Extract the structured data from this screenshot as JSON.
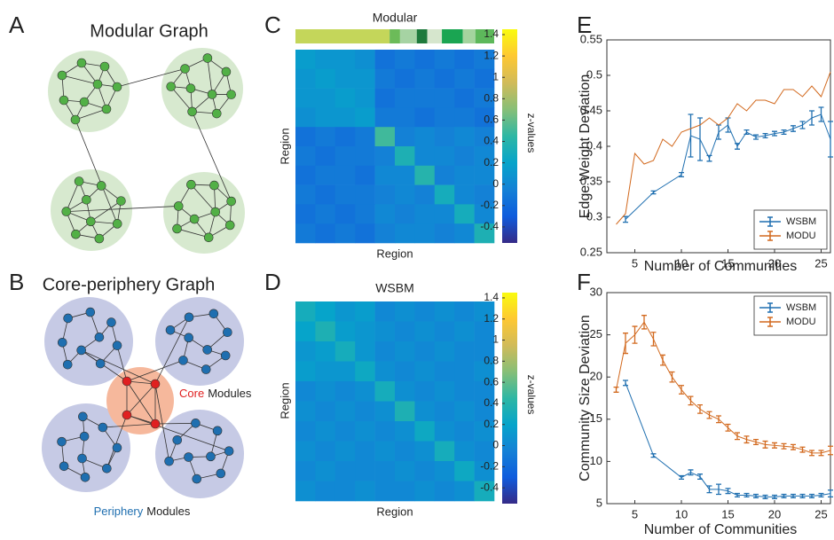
{
  "panel_labels": [
    "A",
    "B",
    "C",
    "D",
    "E",
    "F"
  ],
  "diagrams": {
    "modular": {
      "title": "Modular Graph"
    },
    "core_periphery": {
      "title": "Core-periphery Graph",
      "core_label": "Core",
      "core_suffix": "Modules",
      "periphery_label": "Periphery",
      "periphery_suffix": "Modules"
    }
  },
  "chart_data": [
    {
      "type": "heatmap",
      "title": "Modular",
      "xlabel": "Region",
      "ylabel": "Region",
      "colorbar_label": "z-values",
      "clim": [
        -0.55,
        1.45
      ],
      "colorbar_ticks": [
        -0.4,
        -0.2,
        0,
        0.2,
        0.4,
        0.6,
        0.8,
        1,
        1.2,
        1.4
      ],
      "colormap": [
        "#352a87",
        "#0f5cdd",
        "#1481d6",
        "#06a4ca",
        "#2eb7a4",
        "#87bf77",
        "#d1bb59",
        "#fec832",
        "#f9fb0e"
      ],
      "community_bar": [
        {
          "color": "#c4d65a",
          "size": 45
        },
        {
          "color": "#6cbb59",
          "size": 5
        },
        {
          "color": "#a6d3a3",
          "size": 8
        },
        {
          "color": "#1e7a3c",
          "size": 5
        },
        {
          "color": "#d6e6cd",
          "size": 7
        },
        {
          "color": "#1aa552",
          "size": 10
        },
        {
          "color": "#a4d49e",
          "size": 6
        },
        {
          "color": "#5db85b",
          "size": 9
        }
      ],
      "matrix": [
        [
          0.15,
          0.1,
          0.1,
          0.05,
          -0.15,
          -0.1,
          -0.15,
          -0.1,
          -0.15,
          -0.1
        ],
        [
          0.1,
          0.15,
          0.1,
          0.1,
          -0.1,
          -0.15,
          -0.1,
          -0.15,
          -0.1,
          -0.15
        ],
        [
          0.1,
          0.1,
          0.15,
          0.1,
          -0.15,
          -0.1,
          -0.1,
          -0.1,
          -0.15,
          -0.1
        ],
        [
          0.05,
          0.1,
          0.1,
          0.15,
          -0.1,
          -0.1,
          -0.15,
          -0.1,
          -0.1,
          -0.15
        ],
        [
          -0.15,
          -0.1,
          -0.15,
          -0.1,
          0.5,
          -0.05,
          0,
          -0.05,
          0,
          -0.05
        ],
        [
          -0.1,
          -0.15,
          -0.1,
          -0.1,
          -0.05,
          0.35,
          0,
          0,
          -0.05,
          0
        ],
        [
          -0.15,
          -0.1,
          -0.1,
          -0.15,
          0,
          0,
          0.4,
          -0.05,
          0,
          0
        ],
        [
          -0.1,
          -0.15,
          -0.1,
          -0.1,
          -0.05,
          0,
          -0.05,
          0.3,
          0,
          -0.05
        ],
        [
          -0.15,
          -0.1,
          -0.15,
          -0.1,
          0,
          -0.05,
          0,
          0,
          0.3,
          0
        ],
        [
          -0.1,
          -0.15,
          -0.1,
          -0.15,
          -0.05,
          0,
          0,
          -0.05,
          0,
          0.35
        ]
      ]
    },
    {
      "type": "heatmap",
      "title": "WSBM",
      "xlabel": "Region",
      "ylabel": "Region",
      "colorbar_label": "z-values",
      "clim": [
        -0.55,
        1.45
      ],
      "colorbar_ticks": [
        -0.4,
        -0.2,
        0,
        0.2,
        0.4,
        0.6,
        0.8,
        1,
        1.2,
        1.4
      ],
      "colormap": [
        "#352a87",
        "#0f5cdd",
        "#1481d6",
        "#06a4ca",
        "#2eb7a4",
        "#87bf77",
        "#d1bb59",
        "#fec832",
        "#f9fb0e"
      ],
      "matrix": [
        [
          0.3,
          0.2,
          0.1,
          0.15,
          0,
          0.05,
          0,
          0.05,
          0,
          0.05
        ],
        [
          0.2,
          0.35,
          0.15,
          0.1,
          0.05,
          0,
          0.05,
          0,
          0.05,
          0
        ],
        [
          0.1,
          0.15,
          0.3,
          0.1,
          0,
          0.05,
          0,
          0.05,
          0,
          0
        ],
        [
          0.15,
          0.1,
          0.1,
          0.25,
          0.05,
          0,
          0.05,
          0,
          0,
          0.05
        ],
        [
          0,
          0.05,
          0,
          0.05,
          0.3,
          0.05,
          0,
          0.05,
          0,
          0
        ],
        [
          0.05,
          0,
          0.05,
          0,
          0.05,
          0.35,
          0.05,
          0,
          0.05,
          0
        ],
        [
          0,
          0.05,
          0,
          0.05,
          0,
          0.05,
          0.25,
          0.05,
          0,
          0.05
        ],
        [
          0.05,
          0,
          0.05,
          0,
          0.05,
          0,
          0.05,
          0.3,
          0.05,
          0
        ],
        [
          0,
          0.05,
          0,
          0,
          0,
          0.05,
          0,
          0.05,
          0.25,
          0.05
        ],
        [
          0.05,
          0,
          0,
          0.05,
          0,
          0,
          0.05,
          0,
          0.05,
          0.3
        ]
      ]
    },
    {
      "type": "line",
      "xlabel": "Number of Communities",
      "ylabel": "Edge Weight Deviation",
      "xlim": [
        2,
        26
      ],
      "xticks": [
        5,
        10,
        15,
        20,
        25
      ],
      "ylim": [
        0.25,
        0.55
      ],
      "yticks": [
        0.25,
        0.3,
        0.35,
        0.4,
        0.45,
        0.5,
        0.55
      ],
      "legend": "lower right",
      "series": [
        {
          "name": "WSBM",
          "color": "#1f6fb0",
          "x": [
            4,
            7,
            10,
            11,
            12,
            13,
            14,
            15,
            16,
            17,
            18,
            19,
            20,
            21,
            22,
            23,
            24,
            25,
            26
          ],
          "values": [
            0.297,
            0.335,
            0.36,
            0.415,
            0.41,
            0.383,
            0.42,
            0.43,
            0.4,
            0.42,
            0.413,
            0.415,
            0.418,
            0.42,
            0.425,
            0.43,
            0.44,
            0.445,
            0.41
          ],
          "errors": [
            0.004,
            0.002,
            0.003,
            0.03,
            0.03,
            0.004,
            0.01,
            0.01,
            0.004,
            0.003,
            0.003,
            0.003,
            0.003,
            0.003,
            0.004,
            0.005,
            0.01,
            0.01,
            0.025
          ]
        },
        {
          "name": "MODU",
          "color": "#d2691e",
          "x": [
            3,
            4,
            5,
            6,
            7,
            8,
            9,
            10,
            11,
            12,
            13,
            14,
            15,
            16,
            17,
            18,
            19,
            20,
            21,
            22,
            23,
            24,
            25,
            26
          ],
          "values": [
            0.29,
            0.305,
            0.39,
            0.375,
            0.38,
            0.41,
            0.4,
            0.42,
            0.425,
            0.43,
            0.44,
            0.43,
            0.44,
            0.46,
            0.45,
            0.465,
            0.465,
            0.46,
            0.48,
            0.48,
            0.47,
            0.485,
            0.47,
            0.505
          ]
        }
      ]
    },
    {
      "type": "line",
      "xlabel": "Number of Communities",
      "ylabel": "Community Size Deviation",
      "xlim": [
        2,
        26
      ],
      "xticks": [
        5,
        10,
        15,
        20,
        25
      ],
      "ylim": [
        5,
        30
      ],
      "yticks": [
        5,
        10,
        15,
        20,
        25,
        30
      ],
      "legend": "upper right",
      "series": [
        {
          "name": "WSBM",
          "color": "#1f6fb0",
          "x": [
            4,
            7,
            10,
            11,
            12,
            13,
            14,
            15,
            16,
            17,
            18,
            19,
            20,
            21,
            22,
            23,
            24,
            25,
            26
          ],
          "values": [
            19.3,
            10.7,
            8.1,
            8.7,
            8.2,
            6.7,
            6.7,
            6.5,
            6.0,
            6.0,
            5.9,
            5.8,
            5.8,
            5.9,
            5.9,
            5.9,
            5.9,
            6.0,
            6.2
          ],
          "errors": [
            0.3,
            0.2,
            0.2,
            0.3,
            0.3,
            0.4,
            0.6,
            0.3,
            0.2,
            0.2,
            0.2,
            0.2,
            0.2,
            0.2,
            0.2,
            0.2,
            0.2,
            0.2,
            0.4
          ]
        },
        {
          "name": "MODU",
          "color": "#d2691e",
          "x": [
            3,
            4,
            5,
            6,
            7,
            8,
            9,
            10,
            11,
            12,
            13,
            14,
            15,
            16,
            17,
            18,
            19,
            20,
            21,
            22,
            23,
            24,
            25,
            26
          ],
          "values": [
            18.5,
            24,
            25,
            26.5,
            24.5,
            22,
            20,
            18.5,
            17.2,
            16.2,
            15.5,
            15,
            14,
            13,
            12.6,
            12.3,
            12,
            11.9,
            11.8,
            11.7,
            11.4,
            11,
            11,
            11.3
          ],
          "errors": [
            0.3,
            1.2,
            1.0,
            0.8,
            0.8,
            0.6,
            0.6,
            0.5,
            0.5,
            0.5,
            0.4,
            0.4,
            0.4,
            0.4,
            0.4,
            0.3,
            0.4,
            0.3,
            0.3,
            0.3,
            0.3,
            0.3,
            0.3,
            0.5
          ]
        }
      ]
    }
  ]
}
